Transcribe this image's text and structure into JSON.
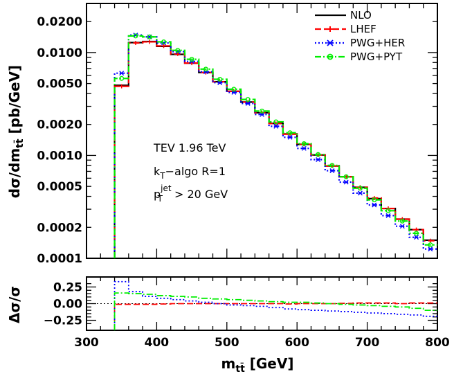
{
  "chart_data": [
    {
      "type": "line",
      "subtype": "histogram-step",
      "ylabel": "dσ/dm_tt̄ [pb/GeV]",
      "yscale": "log",
      "ylim": [
        0.0001,
        0.03
      ],
      "xlim": [
        300,
        800
      ],
      "yticks": [
        {
          "value": 0.02,
          "label": "0.0200"
        },
        {
          "value": 0.01,
          "label": "0.0100"
        },
        {
          "value": 0.005,
          "label": "0.0050"
        },
        {
          "value": 0.002,
          "label": "0.0020"
        },
        {
          "value": 0.001,
          "label": "0.0010"
        },
        {
          "value": 0.0005,
          "label": "0.0005"
        },
        {
          "value": 0.0002,
          "label": "0.0002"
        },
        {
          "value": 0.0001,
          "label": "0.0001"
        }
      ],
      "bin_edges": [
        340,
        360,
        380,
        400,
        420,
        440,
        460,
        480,
        500,
        520,
        540,
        560,
        580,
        600,
        620,
        640,
        660,
        680,
        700,
        720,
        740,
        760,
        780,
        800
      ],
      "series": [
        {
          "name": "NLO",
          "color": "#000000",
          "dash": "",
          "values": [
            0.0048,
            0.0125,
            0.0128,
            0.0115,
            0.0096,
            0.0079,
            0.0064,
            0.0052,
            0.0042,
            0.0033,
            0.0026,
            0.00205,
            0.00162,
            0.00128,
            0.00101,
            0.00079,
            0.00062,
            0.00049,
            0.00038,
            0.000305,
            0.00024,
            0.00019,
            0.00015
          ]
        },
        {
          "name": "LHEF",
          "color": "#ff0000",
          "dash": "9,4",
          "values": [
            0.0047,
            0.0124,
            0.0127,
            0.0116,
            0.0097,
            0.0079,
            0.0064,
            0.0052,
            0.0042,
            0.0033,
            0.0026,
            0.00204,
            0.00161,
            0.00128,
            0.00101,
            0.00079,
            0.00062,
            0.00049,
            0.000385,
            0.000305,
            0.00024,
            0.00019,
            0.000148
          ]
        },
        {
          "name": "PWG+HER",
          "color": "#0000ff",
          "dash": "2,3",
          "values": [
            0.0063,
            0.0148,
            0.0142,
            0.0124,
            0.0102,
            0.0082,
            0.0065,
            0.0051,
            0.0041,
            0.0032,
            0.0025,
            0.00192,
            0.0015,
            0.00117,
            0.00091,
            0.00071,
            0.00055,
            0.00043,
            0.00033,
            0.00026,
            0.000205,
            0.00016,
            0.000123
          ]
        },
        {
          "name": "PWG+PYT",
          "color": "#00ee00",
          "dash": "9,3,2,3",
          "values": [
            0.0056,
            0.0145,
            0.0142,
            0.0127,
            0.0105,
            0.0086,
            0.0069,
            0.0055,
            0.0044,
            0.0035,
            0.0027,
            0.00212,
            0.00166,
            0.0013,
            0.00102,
            0.0008,
            0.00062,
            0.00048,
            0.00037,
            0.00029,
            0.00023,
            0.000175,
            0.000135
          ]
        }
      ],
      "annotations": [
        "TEV 1.96 TeV",
        "k_T-algo R=1",
        "p_T^jet > 20 GeV"
      ],
      "legend_position": "top-right"
    },
    {
      "type": "line",
      "subtype": "ratio-step",
      "ylabel": "Δσ/σ",
      "xlabel": "m_tt̄ [GeV]",
      "xlim": [
        300,
        800
      ],
      "ylim": [
        -0.4,
        0.4
      ],
      "xticks": [
        300,
        400,
        500,
        600,
        700,
        800
      ],
      "yticks": [
        {
          "value": 0.25,
          "label": "0.25"
        },
        {
          "value": 0.0,
          "label": "0.00"
        },
        {
          "value": -0.25,
          "label": "−0.25"
        }
      ],
      "bin_edges": [
        340,
        360,
        380,
        400,
        420,
        440,
        460,
        480,
        500,
        520,
        540,
        560,
        580,
        600,
        620,
        640,
        660,
        680,
        700,
        720,
        740,
        760,
        780,
        800
      ],
      "series": [
        {
          "name": "LHEF",
          "color": "#ff0000",
          "dash": "9,4",
          "values": [
            -0.01,
            -0.01,
            -0.01,
            -0.005,
            0.0,
            0.0,
            0.0,
            0.0,
            0.0,
            0.0,
            0.0,
            0.0,
            -0.005,
            0.0,
            0.0,
            0.0,
            0.005,
            0.01,
            0.01,
            0.01,
            0.0,
            0.01,
            0.01
          ]
        },
        {
          "name": "PWG+HER",
          "color": "#0000ff",
          "dash": "2,3",
          "values": [
            0.33,
            0.18,
            0.11,
            0.08,
            0.06,
            0.04,
            0.02,
            0.0,
            -0.02,
            -0.03,
            -0.04,
            -0.06,
            -0.08,
            -0.09,
            -0.1,
            -0.11,
            -0.12,
            -0.13,
            -0.14,
            -0.15,
            -0.16,
            -0.17,
            -0.19
          ]
        },
        {
          "name": "PWG+PYT",
          "color": "#00ee00",
          "dash": "9,3,2,3",
          "values": [
            0.16,
            0.15,
            0.14,
            0.12,
            0.11,
            0.1,
            0.08,
            0.07,
            0.06,
            0.05,
            0.04,
            0.03,
            0.02,
            0.02,
            0.01,
            0.0,
            -0.01,
            -0.02,
            -0.03,
            -0.04,
            -0.05,
            -0.07,
            -0.1
          ]
        }
      ],
      "reference_line": {
        "name": "NLO",
        "value": 0.0,
        "color": "#000000"
      }
    }
  ],
  "legend": [
    {
      "label": "NLO",
      "color": "#000000",
      "dash": "",
      "marker": "none"
    },
    {
      "label": "LHEF",
      "color": "#ff0000",
      "dash": "9,4",
      "marker": "plus"
    },
    {
      "label": "PWG+HER",
      "color": "#0000ff",
      "dash": "2,3",
      "marker": "star"
    },
    {
      "label": "PWG+PYT",
      "color": "#00ee00",
      "dash": "9,3,2,3",
      "marker": "circle"
    }
  ],
  "annotation_lines": {
    "line1": "TEV 1.96 TeV",
    "line2_main": "k",
    "line2_sub": "T",
    "line2_rest": "−algo R=1",
    "line3_main": "p",
    "line3_sup": "jet",
    "line3_sub": "T",
    "line3_rest": " > 20 GeV"
  },
  "top_ylabel": {
    "part1": "dσ/dm",
    "sub": "tt̄",
    "part2": " [pb/GeV]"
  },
  "bottom_ylabel": "Δσ/σ",
  "xlabel": {
    "main": "m",
    "sub": "tt̄",
    "rest": " [GeV]"
  }
}
